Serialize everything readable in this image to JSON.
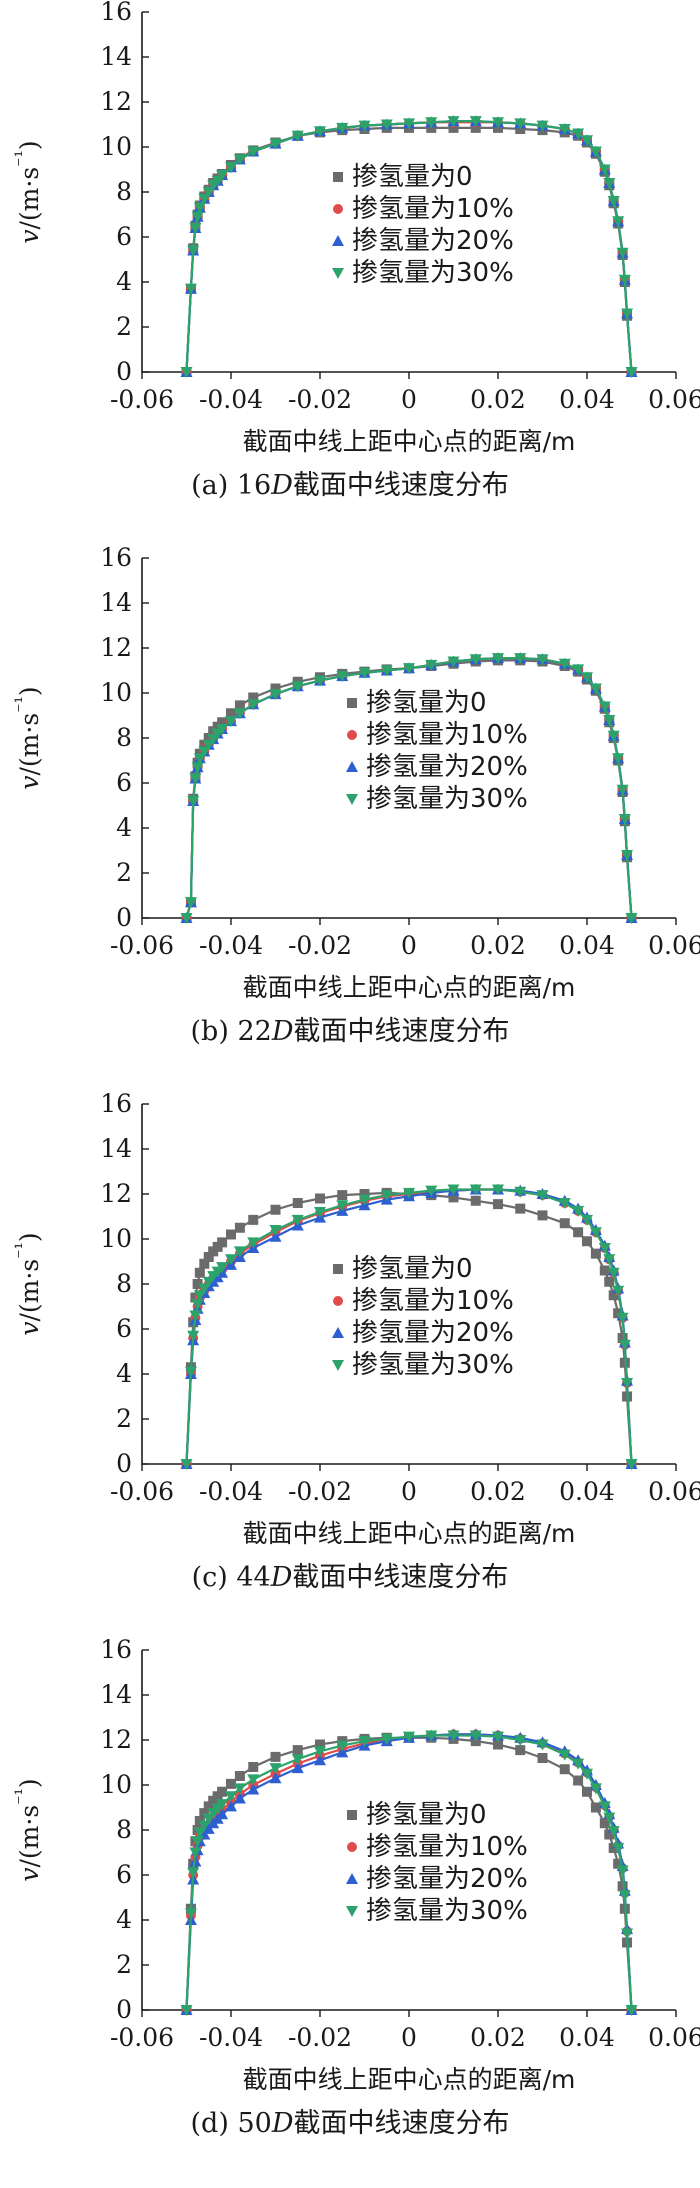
{
  "figure": {
    "panels": [
      {
        "caption_prefix": "(a) 16",
        "caption_italic": "D",
        "caption_suffix": "截面中线速度分布"
      },
      {
        "caption_prefix": "(b) 22",
        "caption_italic": "D",
        "caption_suffix": "截面中线速度分布"
      },
      {
        "caption_prefix": "(c) 44",
        "caption_italic": "D",
        "caption_suffix": "截面中线速度分布"
      },
      {
        "caption_prefix": "(d) 50",
        "caption_italic": "D",
        "caption_suffix": "截面中线速度分布"
      }
    ]
  },
  "chart_data": [
    {
      "type": "line",
      "xlabel": "截面中线上距中心点的距离/m",
      "ylabel": "v/(m·s⁻¹)",
      "xlim": [
        -0.06,
        0.06
      ],
      "ylim": [
        0,
        16
      ],
      "xticks": [
        "-0.06",
        "-0.04",
        "-0.02",
        "0",
        "0.02",
        "0.04",
        "0.06"
      ],
      "yticks": [
        "0",
        "2",
        "4",
        "6",
        "8",
        "10",
        "12",
        "14",
        "16"
      ],
      "grid": false,
      "legend_position": "center",
      "x": [
        -0.05,
        -0.049,
        -0.0485,
        -0.048,
        -0.0475,
        -0.047,
        -0.046,
        -0.045,
        -0.044,
        -0.043,
        -0.042,
        -0.04,
        -0.038,
        -0.035,
        -0.03,
        -0.025,
        -0.02,
        -0.015,
        -0.01,
        -0.005,
        0,
        0.005,
        0.01,
        0.015,
        0.02,
        0.025,
        0.03,
        0.035,
        0.038,
        0.04,
        0.042,
        0.044,
        0.045,
        0.046,
        0.047,
        0.048,
        0.0485,
        0.049,
        0.05
      ],
      "series": [
        {
          "name": "掺氢量为0",
          "marker": "square",
          "color": "#6b6b6b",
          "values": [
            0,
            3.7,
            5.5,
            6.5,
            7.0,
            7.4,
            7.8,
            8.1,
            8.4,
            8.6,
            8.8,
            9.2,
            9.5,
            9.85,
            10.2,
            10.5,
            10.65,
            10.75,
            10.8,
            10.85,
            10.85,
            10.85,
            10.85,
            10.85,
            10.85,
            10.8,
            10.75,
            10.65,
            10.5,
            10.2,
            9.7,
            8.9,
            8.3,
            7.5,
            6.6,
            5.2,
            4.0,
            2.5,
            0
          ]
        },
        {
          "name": "掺氢量为10%",
          "marker": "circle",
          "color": "#e04b4b",
          "values": [
            0,
            3.7,
            5.4,
            6.4,
            6.9,
            7.3,
            7.7,
            8.0,
            8.3,
            8.5,
            8.75,
            9.1,
            9.45,
            9.8,
            10.15,
            10.5,
            10.7,
            10.85,
            10.95,
            11.0,
            11.05,
            11.1,
            11.1,
            11.1,
            11.1,
            11.05,
            10.95,
            10.8,
            10.6,
            10.3,
            9.8,
            9.0,
            8.4,
            7.6,
            6.7,
            5.3,
            4.1,
            2.6,
            0
          ]
        },
        {
          "name": "掺氢量为20%",
          "marker": "triangle-up",
          "color": "#2e5fd1",
          "values": [
            0,
            3.7,
            5.4,
            6.4,
            6.9,
            7.3,
            7.7,
            8.0,
            8.3,
            8.5,
            8.75,
            9.1,
            9.45,
            9.8,
            10.15,
            10.5,
            10.7,
            10.85,
            10.95,
            11.0,
            11.05,
            11.1,
            11.15,
            11.15,
            11.1,
            11.05,
            10.95,
            10.8,
            10.6,
            10.3,
            9.8,
            9.0,
            8.4,
            7.6,
            6.7,
            5.3,
            4.1,
            2.6,
            0
          ]
        },
        {
          "name": "掺氢量为30%",
          "marker": "triangle-down",
          "color": "#2ca36a",
          "values": [
            0,
            3.7,
            5.4,
            6.4,
            6.9,
            7.3,
            7.7,
            8.0,
            8.3,
            8.5,
            8.75,
            9.1,
            9.45,
            9.8,
            10.15,
            10.5,
            10.7,
            10.85,
            10.95,
            11.0,
            11.05,
            11.1,
            11.15,
            11.15,
            11.1,
            11.05,
            10.95,
            10.8,
            10.6,
            10.3,
            9.8,
            9.0,
            8.4,
            7.6,
            6.7,
            5.3,
            4.1,
            2.6,
            0
          ]
        }
      ]
    },
    {
      "type": "line",
      "xlabel": "截面中线上距中心点的距离/m",
      "ylabel": "v/(m·s⁻¹)",
      "xlim": [
        -0.06,
        0.06
      ],
      "ylim": [
        0,
        16
      ],
      "xticks": [
        "-0.06",
        "-0.04",
        "-0.02",
        "0",
        "0.02",
        "0.04",
        "0.06"
      ],
      "yticks": [
        "0",
        "2",
        "4",
        "6",
        "8",
        "10",
        "12",
        "14",
        "16"
      ],
      "grid": false,
      "legend_position": "center-right",
      "x": [
        -0.05,
        -0.049,
        -0.0485,
        -0.048,
        -0.0475,
        -0.047,
        -0.046,
        -0.045,
        -0.044,
        -0.043,
        -0.042,
        -0.04,
        -0.038,
        -0.035,
        -0.03,
        -0.025,
        -0.02,
        -0.015,
        -0.01,
        -0.005,
        0,
        0.005,
        0.01,
        0.015,
        0.02,
        0.025,
        0.03,
        0.035,
        0.038,
        0.04,
        0.042,
        0.044,
        0.045,
        0.046,
        0.047,
        0.048,
        0.0485,
        0.049,
        0.05
      ],
      "series": [
        {
          "name": "掺氢量为0",
          "marker": "square",
          "color": "#6b6b6b",
          "values": [
            0,
            0.7,
            5.3,
            6.3,
            6.9,
            7.3,
            7.7,
            8.0,
            8.3,
            8.5,
            8.7,
            9.1,
            9.45,
            9.8,
            10.2,
            10.5,
            10.7,
            10.85,
            10.95,
            11.05,
            11.1,
            11.2,
            11.3,
            11.4,
            11.45,
            11.45,
            11.4,
            11.2,
            10.95,
            10.6,
            10.1,
            9.3,
            8.7,
            8.0,
            7.0,
            5.6,
            4.3,
            2.7,
            0
          ]
        },
        {
          "name": "掺氢量为10%",
          "marker": "circle",
          "color": "#e04b4b",
          "values": [
            0,
            0.7,
            5.2,
            6.2,
            6.7,
            7.1,
            7.4,
            7.7,
            7.95,
            8.2,
            8.4,
            8.75,
            9.1,
            9.5,
            9.95,
            10.3,
            10.55,
            10.75,
            10.9,
            11.0,
            11.1,
            11.25,
            11.4,
            11.5,
            11.55,
            11.55,
            11.5,
            11.3,
            11.05,
            10.7,
            10.2,
            9.4,
            8.8,
            8.1,
            7.1,
            5.7,
            4.4,
            2.8,
            0
          ]
        },
        {
          "name": "掺氢量为20%",
          "marker": "triangle-up",
          "color": "#2e5fd1",
          "values": [
            0,
            0.7,
            5.2,
            6.2,
            6.7,
            7.1,
            7.4,
            7.7,
            7.95,
            8.2,
            8.4,
            8.75,
            9.1,
            9.5,
            9.95,
            10.3,
            10.55,
            10.75,
            10.9,
            11.0,
            11.1,
            11.25,
            11.4,
            11.5,
            11.55,
            11.55,
            11.5,
            11.3,
            11.05,
            10.7,
            10.2,
            9.4,
            8.8,
            8.1,
            7.1,
            5.7,
            4.4,
            2.8,
            0
          ]
        },
        {
          "name": "掺氢量为30%",
          "marker": "triangle-down",
          "color": "#2ca36a",
          "values": [
            0,
            0.7,
            5.2,
            6.2,
            6.7,
            7.1,
            7.4,
            7.7,
            7.95,
            8.2,
            8.4,
            8.75,
            9.1,
            9.5,
            9.95,
            10.3,
            10.55,
            10.75,
            10.9,
            11.0,
            11.1,
            11.25,
            11.4,
            11.5,
            11.55,
            11.55,
            11.5,
            11.3,
            11.05,
            10.7,
            10.2,
            9.4,
            8.8,
            8.1,
            7.1,
            5.7,
            4.4,
            2.8,
            0
          ]
        }
      ]
    },
    {
      "type": "line",
      "xlabel": "截面中线上距中心点的距离/m",
      "ylabel": "v/(m·s⁻¹)",
      "xlim": [
        -0.06,
        0.06
      ],
      "ylim": [
        0,
        16
      ],
      "xticks": [
        "-0.06",
        "-0.04",
        "-0.02",
        "0",
        "0.02",
        "0.04",
        "0.06"
      ],
      "yticks": [
        "0",
        "2",
        "4",
        "6",
        "8",
        "10",
        "12",
        "14",
        "16"
      ],
      "grid": false,
      "legend_position": "center",
      "x": [
        -0.05,
        -0.049,
        -0.0485,
        -0.048,
        -0.0475,
        -0.047,
        -0.046,
        -0.045,
        -0.044,
        -0.043,
        -0.042,
        -0.04,
        -0.038,
        -0.035,
        -0.03,
        -0.025,
        -0.02,
        -0.015,
        -0.01,
        -0.005,
        0,
        0.005,
        0.01,
        0.015,
        0.02,
        0.025,
        0.03,
        0.035,
        0.038,
        0.04,
        0.042,
        0.044,
        0.045,
        0.046,
        0.047,
        0.048,
        0.0485,
        0.049,
        0.05
      ],
      "series": [
        {
          "name": "掺氢量为0",
          "marker": "square",
          "color": "#6b6b6b",
          "values": [
            0,
            4.3,
            6.3,
            7.4,
            8.0,
            8.5,
            8.9,
            9.2,
            9.45,
            9.65,
            9.85,
            10.2,
            10.5,
            10.85,
            11.3,
            11.6,
            11.8,
            11.95,
            12.0,
            12.05,
            12.0,
            11.95,
            11.85,
            11.7,
            11.55,
            11.35,
            11.05,
            10.7,
            10.3,
            9.9,
            9.35,
            8.6,
            8.1,
            7.5,
            6.7,
            5.6,
            4.5,
            3.0,
            0
          ]
        },
        {
          "name": "掺氢量为10%",
          "marker": "circle",
          "color": "#e04b4b",
          "values": [
            0,
            4.0,
            5.6,
            6.5,
            7.0,
            7.4,
            7.7,
            8.0,
            8.25,
            8.45,
            8.65,
            9.0,
            9.35,
            9.75,
            10.3,
            10.8,
            11.15,
            11.45,
            11.7,
            11.9,
            12.0,
            12.1,
            12.15,
            12.2,
            12.2,
            12.1,
            11.95,
            11.6,
            11.25,
            10.85,
            10.3,
            9.6,
            9.1,
            8.5,
            7.7,
            6.5,
            5.3,
            3.6,
            0
          ]
        },
        {
          "name": "掺氢量为20%",
          "marker": "triangle-up",
          "color": "#2e5fd1",
          "values": [
            0,
            4.0,
            5.5,
            6.4,
            6.9,
            7.3,
            7.6,
            7.9,
            8.1,
            8.3,
            8.5,
            8.85,
            9.2,
            9.6,
            10.1,
            10.6,
            10.95,
            11.25,
            11.5,
            11.75,
            11.9,
            12.05,
            12.15,
            12.2,
            12.2,
            12.15,
            12.0,
            11.7,
            11.35,
            10.95,
            10.4,
            9.7,
            9.2,
            8.6,
            7.8,
            6.6,
            5.4,
            3.7,
            0
          ]
        },
        {
          "name": "掺氢量为30%",
          "marker": "triangle-down",
          "color": "#2ca36a",
          "values": [
            0,
            4.1,
            5.7,
            6.6,
            7.1,
            7.5,
            7.8,
            8.1,
            8.35,
            8.55,
            8.75,
            9.1,
            9.45,
            9.85,
            10.4,
            10.85,
            11.2,
            11.5,
            11.75,
            11.95,
            12.05,
            12.15,
            12.2,
            12.2,
            12.2,
            12.1,
            11.95,
            11.6,
            11.25,
            10.85,
            10.3,
            9.6,
            9.1,
            8.5,
            7.7,
            6.5,
            5.3,
            3.6,
            0
          ]
        }
      ]
    },
    {
      "type": "line",
      "xlabel": "截面中线上距中心点的距离/m",
      "ylabel": "v/(m·s⁻¹)",
      "xlim": [
        -0.06,
        0.06
      ],
      "ylim": [
        0,
        16
      ],
      "xticks": [
        "-0.06",
        "-0.04",
        "-0.02",
        "0",
        "0.02",
        "0.04",
        "0.06"
      ],
      "yticks": [
        "0",
        "2",
        "4",
        "6",
        "8",
        "10",
        "12",
        "14",
        "16"
      ],
      "grid": false,
      "legend_position": "center",
      "x": [
        -0.05,
        -0.049,
        -0.0485,
        -0.048,
        -0.0475,
        -0.047,
        -0.046,
        -0.045,
        -0.044,
        -0.043,
        -0.042,
        -0.04,
        -0.038,
        -0.035,
        -0.03,
        -0.025,
        -0.02,
        -0.015,
        -0.01,
        -0.005,
        0,
        0.005,
        0.01,
        0.015,
        0.02,
        0.025,
        0.03,
        0.035,
        0.038,
        0.04,
        0.042,
        0.044,
        0.045,
        0.046,
        0.047,
        0.048,
        0.0485,
        0.049,
        0.05
      ],
      "series": [
        {
          "name": "掺氢量为0",
          "marker": "square",
          "color": "#6b6b6b",
          "values": [
            0,
            4.5,
            6.5,
            7.5,
            8.0,
            8.4,
            8.75,
            9.05,
            9.3,
            9.5,
            9.7,
            10.05,
            10.4,
            10.8,
            11.25,
            11.55,
            11.8,
            11.95,
            12.05,
            12.1,
            12.1,
            12.1,
            12.05,
            11.95,
            11.8,
            11.55,
            11.2,
            10.7,
            10.2,
            9.7,
            9.0,
            8.3,
            7.8,
            7.2,
            6.5,
            5.5,
            4.5,
            3.0,
            0
          ]
        },
        {
          "name": "掺氢量为10%",
          "marker": "circle",
          "color": "#e04b4b",
          "values": [
            0,
            4.2,
            6.0,
            6.8,
            7.3,
            7.7,
            8.0,
            8.25,
            8.5,
            8.7,
            8.9,
            9.25,
            9.6,
            10.0,
            10.5,
            10.95,
            11.3,
            11.6,
            11.85,
            12.0,
            12.1,
            12.2,
            12.25,
            12.25,
            12.2,
            12.05,
            11.85,
            11.4,
            11.0,
            10.55,
            9.9,
            9.1,
            8.6,
            8.0,
            7.3,
            6.3,
            5.2,
            3.5,
            0
          ]
        },
        {
          "name": "掺氢量为20%",
          "marker": "triangle-up",
          "color": "#2e5fd1",
          "values": [
            0,
            4.0,
            5.8,
            6.6,
            7.1,
            7.5,
            7.8,
            8.05,
            8.3,
            8.5,
            8.7,
            9.05,
            9.4,
            9.8,
            10.3,
            10.75,
            11.1,
            11.45,
            11.75,
            11.95,
            12.1,
            12.2,
            12.25,
            12.25,
            12.2,
            12.1,
            11.9,
            11.5,
            11.1,
            10.65,
            10.0,
            9.2,
            8.7,
            8.1,
            7.4,
            6.4,
            5.3,
            3.6,
            0
          ]
        },
        {
          "name": "掺氢量为30%",
          "marker": "triangle-down",
          "color": "#2ca36a",
          "values": [
            0,
            4.3,
            6.1,
            7.0,
            7.5,
            7.9,
            8.2,
            8.5,
            8.75,
            8.95,
            9.15,
            9.5,
            9.85,
            10.25,
            10.75,
            11.15,
            11.5,
            11.75,
            11.95,
            12.05,
            12.15,
            12.2,
            12.2,
            12.2,
            12.15,
            12.0,
            11.8,
            11.35,
            10.95,
            10.5,
            9.85,
            9.05,
            8.55,
            7.95,
            7.2,
            6.2,
            5.1,
            3.4,
            0
          ]
        }
      ]
    }
  ]
}
